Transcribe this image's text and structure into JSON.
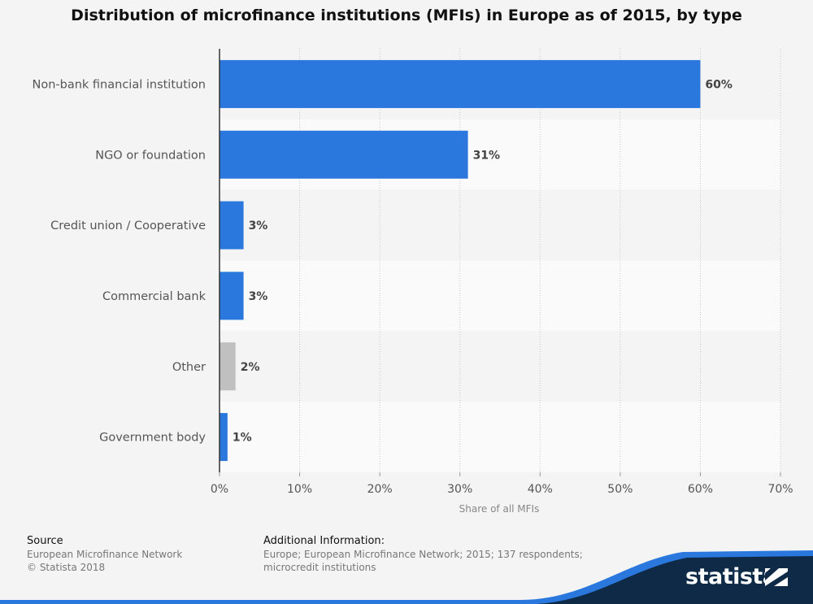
{
  "chart_data": {
    "type": "bar",
    "orientation": "horizontal",
    "title": "Distribution of microfinance institutions (MFIs) in Europe as of 2015, by type",
    "categories": [
      "Non-bank financial institution",
      "NGO or foundation",
      "Credit union / Cooperative",
      "Commercial bank",
      "Other",
      "Government body"
    ],
    "values": [
      60,
      31,
      3,
      3,
      2,
      1
    ],
    "value_labels": [
      "60%",
      "31%",
      "3%",
      "3%",
      "2%",
      "1%"
    ],
    "bar_colors": [
      "#2a78de",
      "#2a78de",
      "#2a78de",
      "#2a78de",
      "#c0c0c0",
      "#2a78de"
    ],
    "xlabel": "Share of all MFIs",
    "ylabel": "",
    "xlim": [
      0,
      70
    ],
    "xticks": [
      0,
      10,
      20,
      30,
      40,
      50,
      60,
      70
    ],
    "xtick_labels": [
      "0%",
      "10%",
      "20%",
      "30%",
      "40%",
      "50%",
      "60%",
      "70%"
    ],
    "grid": true
  },
  "footer": {
    "source_heading": "Source",
    "source_lines": [
      "European Microfinance Network",
      "© Statista 2018"
    ],
    "info_heading": "Additional Information:",
    "info_lines": [
      "Europe; European Microfinance Network; 2015; 137 respondents;",
      "microcredit institutions"
    ],
    "logo_text": "statista"
  },
  "colors": {
    "accent": "#2a78de",
    "other": "#c0c0c0",
    "navy": "#0e2a47"
  }
}
